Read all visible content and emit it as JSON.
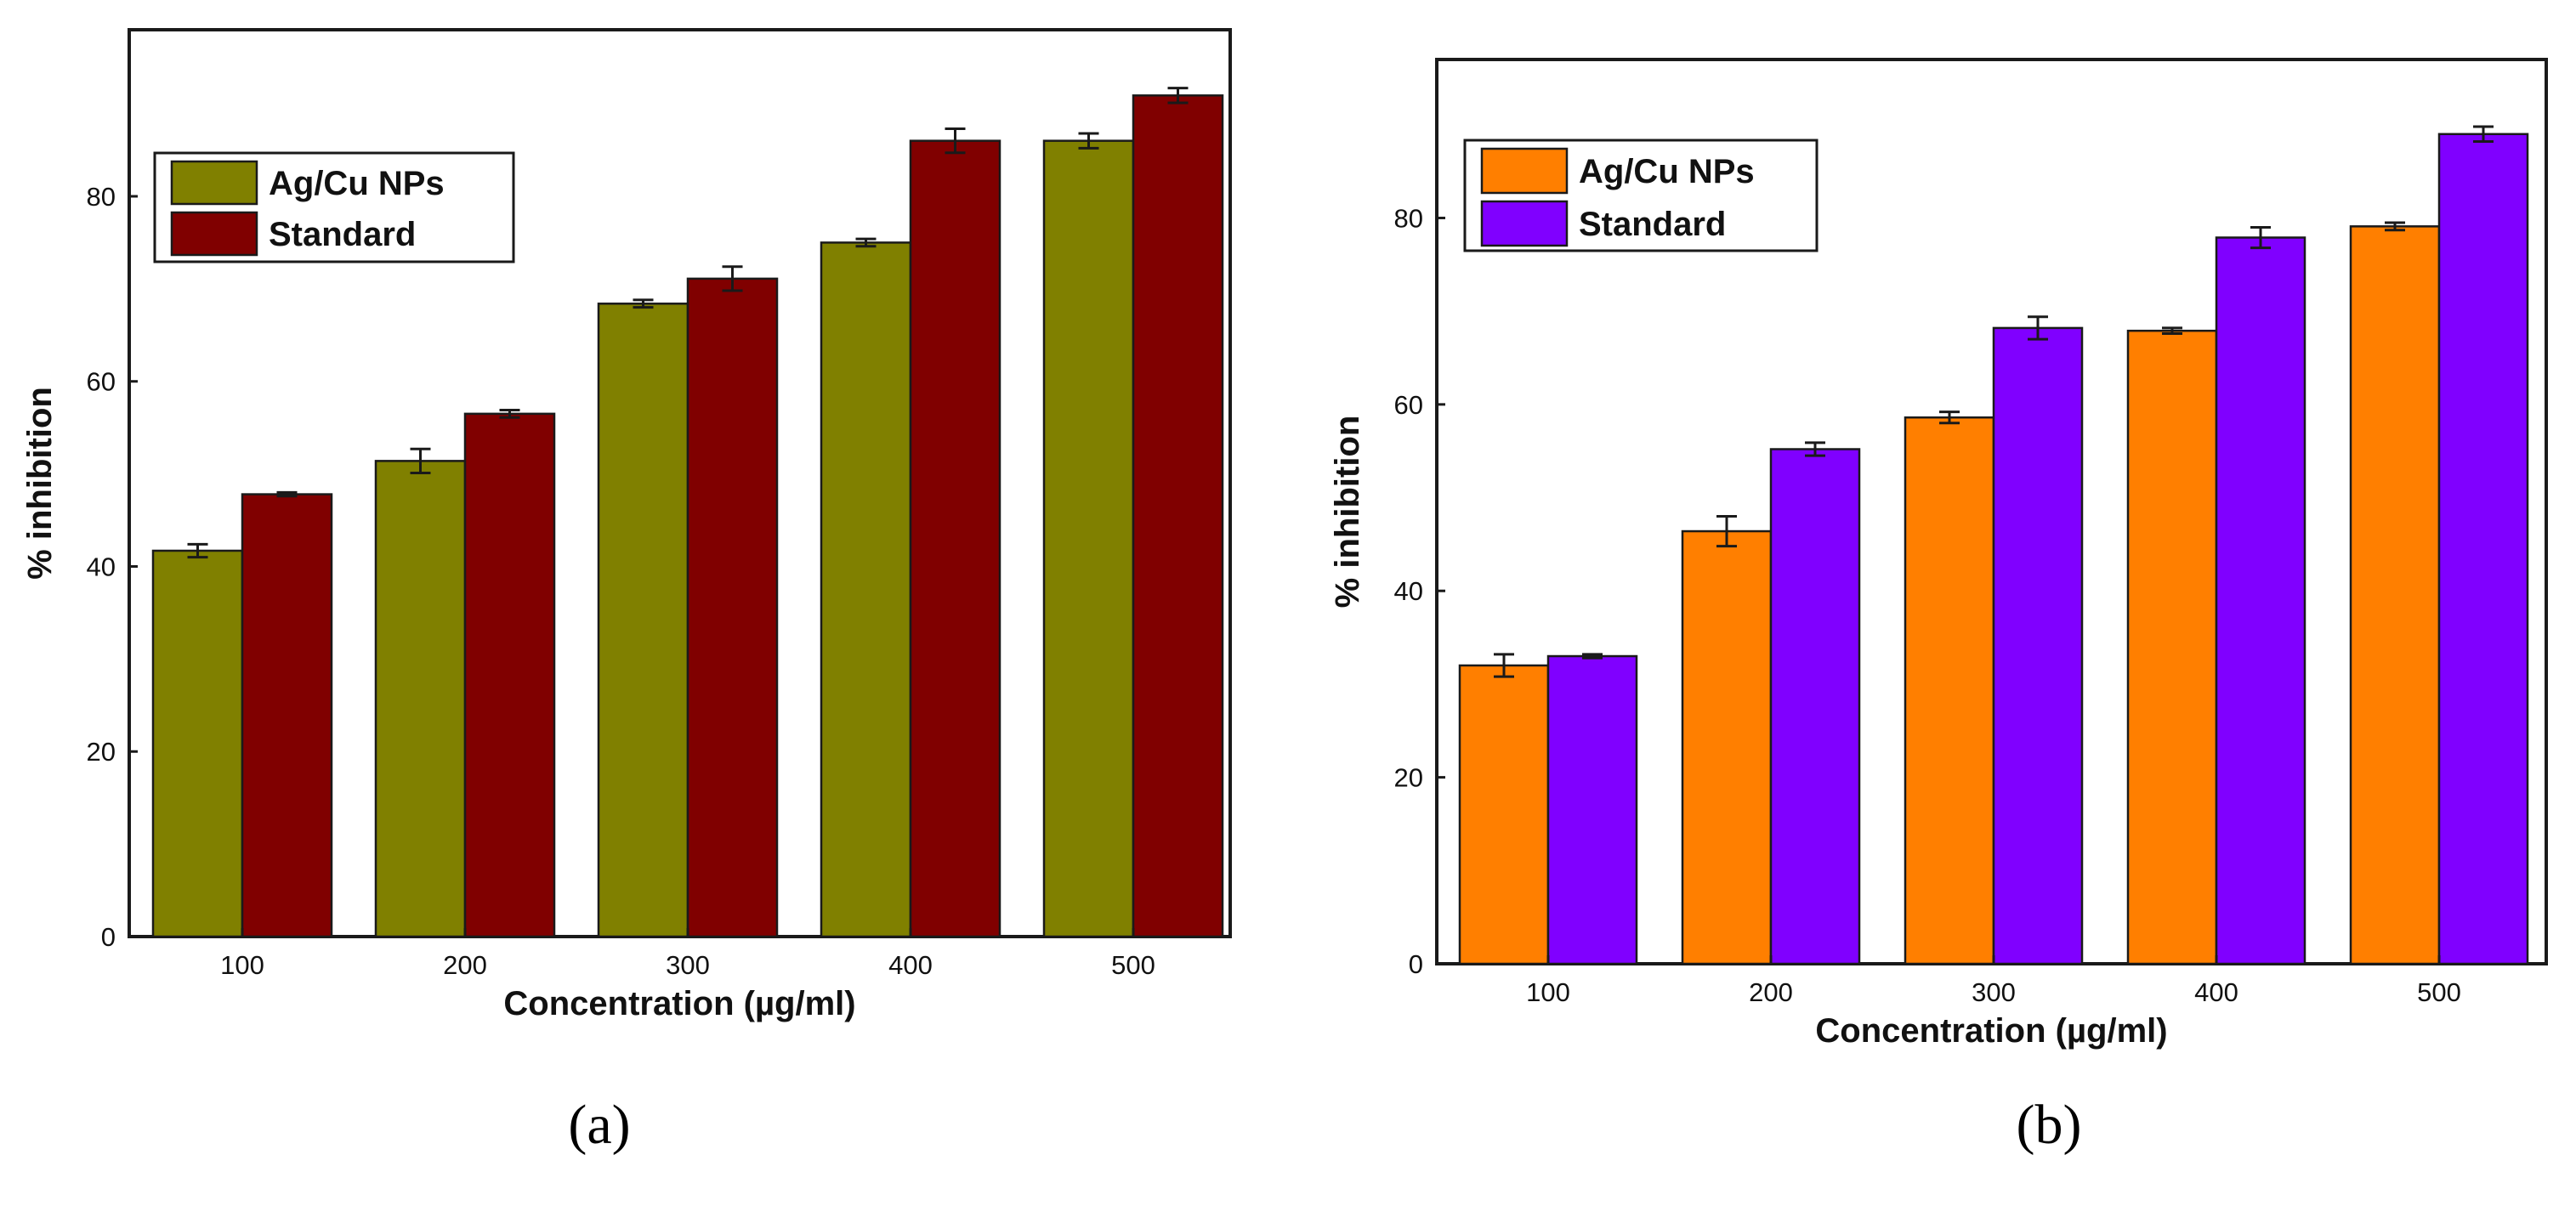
{
  "chart_data": [
    {
      "type": "bar",
      "panel_label": "(a)",
      "categories": [
        "100",
        "200",
        "300",
        "400",
        "500"
      ],
      "series": [
        {
          "name": "Ag/Cu NPs",
          "color": "#808000",
          "values": [
            41.7,
            51.4,
            68.4,
            75.0,
            86.0
          ],
          "errors": [
            0.7,
            1.3,
            0.4,
            0.4,
            0.8
          ]
        },
        {
          "name": "Standard",
          "color": "#800000",
          "values": [
            47.8,
            56.5,
            71.1,
            86.0,
            90.9
          ],
          "errors": [
            0.2,
            0.4,
            1.3,
            1.3,
            0.8
          ]
        }
      ],
      "xlabel": "Concentration (µg/ml)",
      "ylabel": "% inhibition",
      "ylim": [
        0,
        98
      ],
      "yticks": [
        "0",
        "20",
        "40",
        "60",
        "80"
      ],
      "legend_position": "top-left",
      "grid": false
    },
    {
      "type": "bar",
      "panel_label": "(b)",
      "categories": [
        "100",
        "200",
        "300",
        "400",
        "500"
      ],
      "series": [
        {
          "name": "Ag/Cu NPs",
          "color": "#FF7F00",
          "values": [
            32.0,
            46.4,
            58.6,
            67.9,
            79.1
          ],
          "errors": [
            1.2,
            1.6,
            0.6,
            0.3,
            0.4
          ]
        },
        {
          "name": "Standard",
          "color": "#8000FF",
          "values": [
            33.0,
            55.2,
            68.2,
            77.9,
            89.0
          ],
          "errors": [
            0.2,
            0.7,
            1.2,
            1.1,
            0.8
          ]
        }
      ],
      "xlabel": "Concentration (µg/ml)",
      "ylabel": "% inhibition",
      "ylim": [
        0,
        97
      ],
      "yticks": [
        "0",
        "20",
        "40",
        "60",
        "80"
      ],
      "legend_position": "top-left",
      "grid": false
    }
  ]
}
